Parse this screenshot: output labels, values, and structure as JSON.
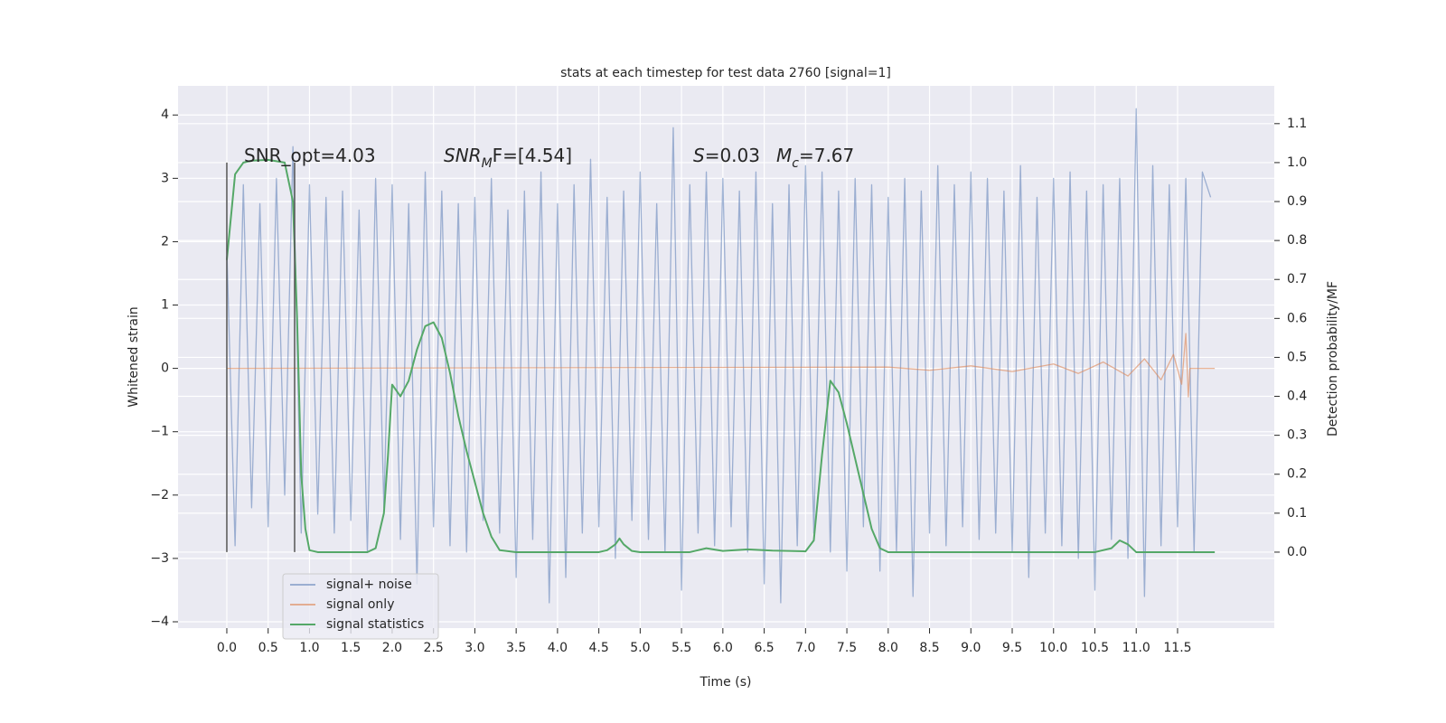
{
  "chart_data": {
    "type": "line",
    "title": "stats at each timestep for test data 2760 [signal=1]",
    "xlabel": "Time (s)",
    "ylabel": "Whitened strain",
    "y2label": "Detection probability/MF",
    "xlim": [
      -0.59,
      12.67
    ],
    "ylim": [
      -4.1,
      4.46
    ],
    "y2lim": [
      -0.195,
      1.197
    ],
    "xticks": [
      {
        "value": 0,
        "label": "0.0"
      },
      0.5,
      {
        "value": 1,
        "label": "1.0"
      },
      1.5,
      {
        "value": 2,
        "label": "2.0"
      },
      2.5,
      {
        "value": 3,
        "label": "3.0"
      },
      3.5,
      {
        "value": 4,
        "label": "4.0"
      },
      4.5,
      {
        "value": 5,
        "label": "5.0"
      },
      5.5,
      {
        "value": 6,
        "label": "6.0"
      },
      6.5,
      {
        "value": 7,
        "label": "7.0"
      },
      7.5,
      {
        "value": 8,
        "label": "8.0"
      },
      8.5,
      {
        "value": 9,
        "label": "9.0"
      },
      9.5,
      {
        "value": 10,
        "label": "10.0"
      },
      10.5,
      {
        "value": 11,
        "label": "11.0"
      },
      11.5
    ],
    "yticks": [
      {
        "value": -4,
        "label": "−4"
      },
      {
        "value": -3,
        "label": "−3"
      },
      {
        "value": -2,
        "label": "−2"
      },
      {
        "value": -1,
        "label": "−1"
      },
      0,
      1,
      2,
      3,
      4
    ],
    "y2ticks": [
      {
        "value": 0,
        "label": "0.0"
      },
      0.1,
      0.2,
      0.3,
      0.4,
      0.5,
      0.6,
      0.7,
      0.8,
      0.9,
      {
        "value": 1,
        "label": "1.0"
      },
      1.1
    ],
    "grid": true,
    "legend": "lower left",
    "series": [
      {
        "name": "signal+ noise",
        "color": "#4c72b0",
        "opacity": 0.5,
        "x": [
          0,
          0.1,
          0.2,
          0.3,
          0.4,
          0.5,
          0.6,
          0.7,
          0.8,
          0.9,
          1,
          1.1,
          1.2,
          1.3,
          1.4,
          1.5,
          1.6,
          1.7,
          1.8,
          1.9,
          2,
          2.1,
          2.2,
          2.3,
          2.4,
          2.5,
          2.6,
          2.7,
          2.8,
          2.9,
          3,
          3.1,
          3.2,
          3.3,
          3.4,
          3.5,
          3.6,
          3.7,
          3.8,
          3.9,
          4,
          4.1,
          4.2,
          4.3,
          4.4,
          4.5,
          4.6,
          4.7,
          4.8,
          4.9,
          5,
          5.1,
          5.2,
          5.3,
          5.4,
          5.5,
          5.6,
          5.7,
          5.8,
          5.9,
          6,
          6.1,
          6.2,
          6.3,
          6.4,
          6.5,
          6.6,
          6.7,
          6.8,
          6.9,
          7,
          7.1,
          7.2,
          7.3,
          7.4,
          7.5,
          7.6,
          7.7,
          7.8,
          7.9,
          8,
          8.1,
          8.2,
          8.3,
          8.4,
          8.5,
          8.6,
          8.7,
          8.8,
          8.9,
          9,
          9.1,
          9.2,
          9.3,
          9.4,
          9.5,
          9.6,
          9.7,
          9.8,
          9.9,
          10,
          10.1,
          10.2,
          10.3,
          10.4,
          10.5,
          10.6,
          10.7,
          10.8,
          10.9,
          11,
          11.1,
          11.2,
          11.3,
          11.4,
          11.5,
          11.6,
          11.7,
          11.8,
          11.9
        ],
        "values": [
          1.9,
          -2.8,
          2.9,
          -2.2,
          2.6,
          -2.5,
          3.0,
          -2.0,
          3.5,
          -2.6,
          2.9,
          -2.3,
          2.7,
          -2.6,
          2.8,
          -2.4,
          2.5,
          -2.9,
          3.0,
          -2.2,
          2.9,
          -2.7,
          2.6,
          -3.4,
          3.1,
          -2.5,
          2.8,
          -2.8,
          2.6,
          -2.9,
          2.7,
          -2.4,
          3.0,
          -2.6,
          2.5,
          -3.3,
          2.8,
          -2.7,
          3.1,
          -3.7,
          2.6,
          -3.3,
          2.9,
          -2.6,
          3.3,
          -2.5,
          2.7,
          -3.0,
          2.8,
          -2.4,
          3.1,
          -2.7,
          2.6,
          -2.9,
          3.8,
          -3.5,
          2.9,
          -2.6,
          3.1,
          -2.8,
          3.0,
          -2.5,
          2.8,
          -2.9,
          3.1,
          -3.4,
          2.6,
          -3.7,
          2.9,
          -2.8,
          3.2,
          -2.6,
          3.1,
          -2.9,
          2.8,
          -3.2,
          3.0,
          -2.5,
          2.9,
          -3.2,
          2.7,
          -2.9,
          3.0,
          -3.6,
          2.8,
          -2.6,
          3.2,
          -2.8,
          2.9,
          -2.5,
          3.1,
          -2.7,
          3.0,
          -2.6,
          2.8,
          -2.9,
          3.2,
          -3.3,
          2.7,
          -2.6,
          3.0,
          -2.8,
          3.1,
          -3.0,
          2.8,
          -3.5,
          2.9,
          -2.7,
          3.0,
          -3.0,
          4.1,
          -3.6,
          3.2,
          -2.8,
          2.9,
          -2.5,
          3.0,
          -2.9,
          3.1,
          2.7
        ]
      },
      {
        "name": "signal only",
        "color": "#dd8452",
        "opacity": 0.6,
        "x": [
          0,
          8.0,
          8.5,
          9.0,
          9.5,
          10.0,
          10.3,
          10.6,
          10.9,
          11.1,
          11.3,
          11.45,
          11.55,
          11.6,
          11.63,
          11.65,
          11.7,
          11.95
        ],
        "values": [
          0,
          0.02,
          -0.03,
          0.04,
          -0.05,
          0.07,
          -0.08,
          0.1,
          -0.12,
          0.15,
          -0.18,
          0.22,
          -0.25,
          0.55,
          -0.45,
          0,
          0,
          0
        ]
      },
      {
        "name": "signal statistics",
        "color": "#55a868",
        "opacity": 1,
        "axis": "y2",
        "x": [
          0,
          0.1,
          0.2,
          0.3,
          0.5,
          0.7,
          0.8,
          0.85,
          0.9,
          0.95,
          1.0,
          1.1,
          1.5,
          1.7,
          1.8,
          1.9,
          1.95,
          2.0,
          2.1,
          2.2,
          2.3,
          2.4,
          2.5,
          2.6,
          2.7,
          2.8,
          2.9,
          3.0,
          3.1,
          3.2,
          3.3,
          3.5,
          4.5,
          4.6,
          4.7,
          4.75,
          4.8,
          4.9,
          5.0,
          5.6,
          5.8,
          6.0,
          6.3,
          6.6,
          6.8,
          7.0,
          7.1,
          7.2,
          7.3,
          7.4,
          7.5,
          7.6,
          7.7,
          7.8,
          7.9,
          8.0,
          9.0,
          10.5,
          10.7,
          10.8,
          10.9,
          11.0,
          11.95
        ],
        "values": [
          0.75,
          0.97,
          1.0,
          1.005,
          1.007,
          1.0,
          0.9,
          0.6,
          0.2,
          0.06,
          0.005,
          0,
          0,
          0,
          0.01,
          0.1,
          0.25,
          0.43,
          0.4,
          0.44,
          0.52,
          0.58,
          0.59,
          0.55,
          0.46,
          0.35,
          0.26,
          0.18,
          0.1,
          0.04,
          0.005,
          0,
          0,
          0.005,
          0.02,
          0.035,
          0.02,
          0.003,
          0,
          0,
          0.01,
          0.003,
          0.007,
          0.004,
          0.003,
          0.002,
          0.03,
          0.25,
          0.44,
          0.41,
          0.33,
          0.24,
          0.15,
          0.06,
          0.01,
          0,
          0,
          0,
          0.01,
          0.03,
          0.02,
          0,
          0
        ]
      }
    ],
    "vlines": [
      {
        "color": "#555555",
        "x": 0,
        "y": [
          -2.9,
          3.25
        ]
      },
      {
        "color": "#555555",
        "x": 0.82,
        "y": [
          -2.9,
          3.25
        ]
      }
    ],
    "annotations": [
      {
        "parts": [
          {
            "text": "SNR_opt=4.03"
          }
        ]
      },
      {
        "parts": [
          {
            "text": "SNR",
            "italic": true
          },
          {
            "text": "M",
            "italic": true,
            "sub": true
          },
          {
            "text": "F=[4.54]"
          }
        ]
      },
      {
        "parts": [
          {
            "text": "S",
            "italic": true
          },
          {
            "text": "=0.03"
          }
        ]
      },
      {
        "parts": [
          {
            "text": "M",
            "italic": true
          },
          {
            "text": "c",
            "italic": true,
            "sub": true
          },
          {
            "text": "=7.67"
          }
        ]
      }
    ]
  }
}
